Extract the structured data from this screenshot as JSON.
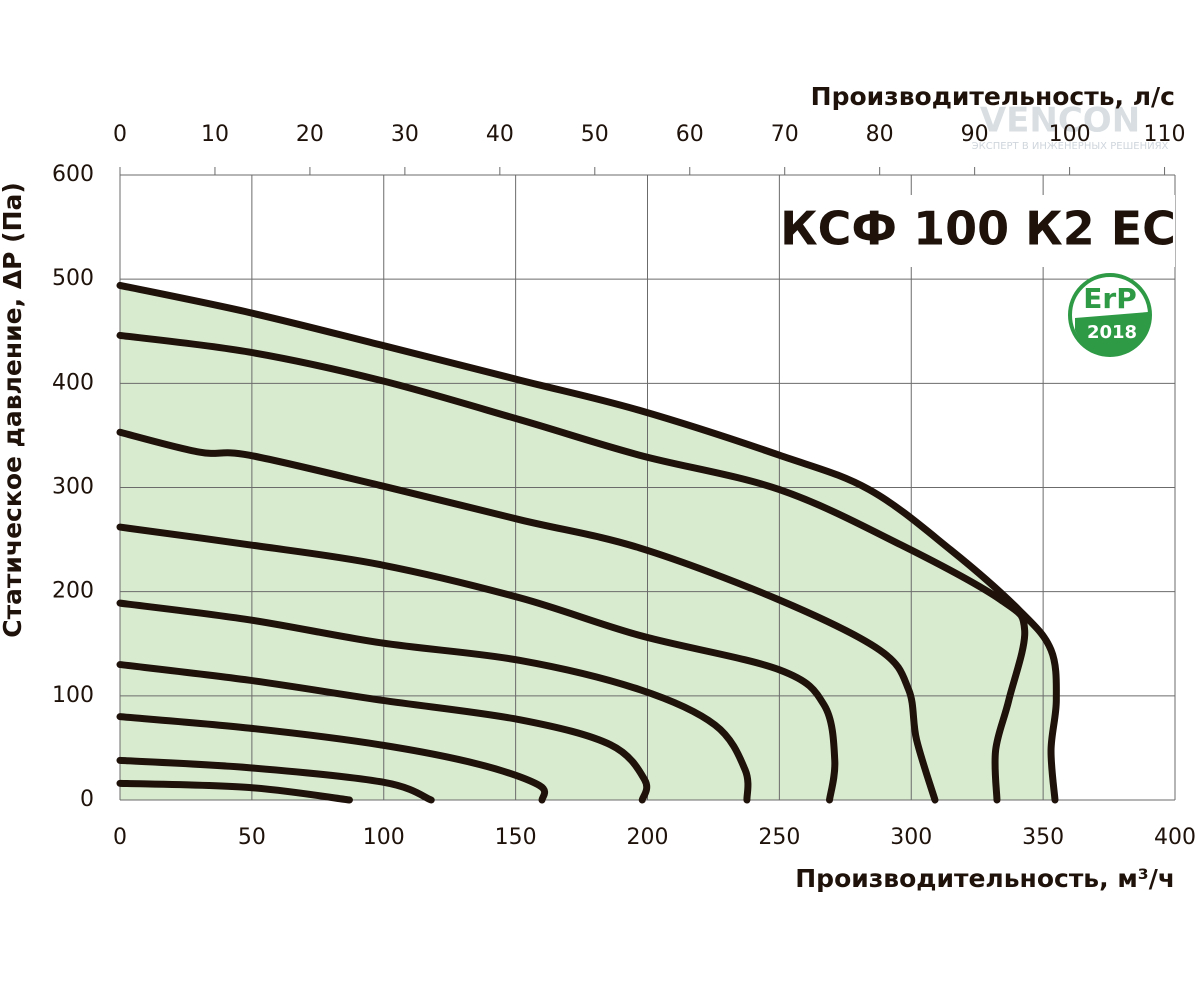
{
  "chart_data": {
    "type": "line",
    "title": "КСФ 100 К2 ЕС",
    "badge": {
      "text": "ErP",
      "year": "2018",
      "color": "#2e9a46"
    },
    "xlabel": "Производительность, м³/ч",
    "x2label": "Производительность, л/с",
    "ylabel": "Статическое давление, ΔP (Па)",
    "xlim": [
      0,
      400
    ],
    "xticks": [
      0,
      50,
      100,
      150,
      200,
      250,
      300,
      350,
      400
    ],
    "x2lim": [
      0,
      111.1
    ],
    "x2ticks": [
      0,
      10,
      20,
      30,
      40,
      50,
      60,
      70,
      80,
      90,
      100,
      110
    ],
    "ylim": [
      0,
      600
    ],
    "yticks": [
      0,
      100,
      200,
      300,
      400,
      500,
      600
    ],
    "grid": true,
    "fill_color": "#d9ebcf",
    "line_color": "#1e120b",
    "series": [
      {
        "x": [
          0,
          49,
          98.6,
          151.7,
          197,
          250,
          284,
          315,
          341,
          353,
          355,
          353,
          354.5
        ],
        "values": [
          494,
          468,
          437,
          403,
          374,
          331,
          298,
          240,
          182,
          144,
          96,
          48,
          0
        ]
      },
      {
        "x": [
          0,
          49,
          98.6,
          151.7,
          197,
          250,
          296,
          334,
          343,
          337,
          332,
          332.5
        ],
        "values": [
          446,
          430,
          403,
          365,
          331,
          298,
          245,
          192,
          163,
          96,
          48,
          0
        ]
      },
      {
        "x": [
          0,
          30,
          49,
          98.6,
          151.7,
          197,
          250,
          288,
          299,
          302,
          309
        ],
        "values": [
          353,
          334,
          331,
          302,
          269,
          242,
          192,
          144,
          106,
          58,
          0
        ]
      },
      {
        "x": [
          0,
          49,
          98.6,
          151.7,
          197,
          250,
          267,
          271,
          269
        ],
        "values": [
          262,
          245,
          226,
          194,
          158,
          125,
          91,
          38,
          0
        ]
      },
      {
        "x": [
          0,
          49,
          98.6,
          151.7,
          197,
          225.6,
          237,
          237.7
        ],
        "values": [
          189,
          173,
          151,
          134,
          106,
          72,
          29,
          0
        ]
      },
      {
        "x": [
          0,
          49,
          98.6,
          151.7,
          186,
          199,
          198
        ],
        "values": [
          130,
          115,
          96,
          77,
          53,
          19,
          0
        ]
      },
      {
        "x": [
          0,
          49,
          98.6,
          136.5,
          159,
          160
        ],
        "values": [
          80,
          69,
          53,
          34,
          14,
          0
        ]
      },
      {
        "x": [
          0,
          49,
          100,
          118
        ],
        "values": [
          38,
          31,
          17,
          0
        ]
      },
      {
        "x": [
          0,
          49,
          87
        ],
        "values": [
          16,
          12,
          0
        ]
      }
    ]
  },
  "watermark": {
    "brand": "VENCON",
    "tagline": "ЭКСПЕРТ В ИНЖЕНЕРНЫХ РЕШЕНИЯХ"
  }
}
